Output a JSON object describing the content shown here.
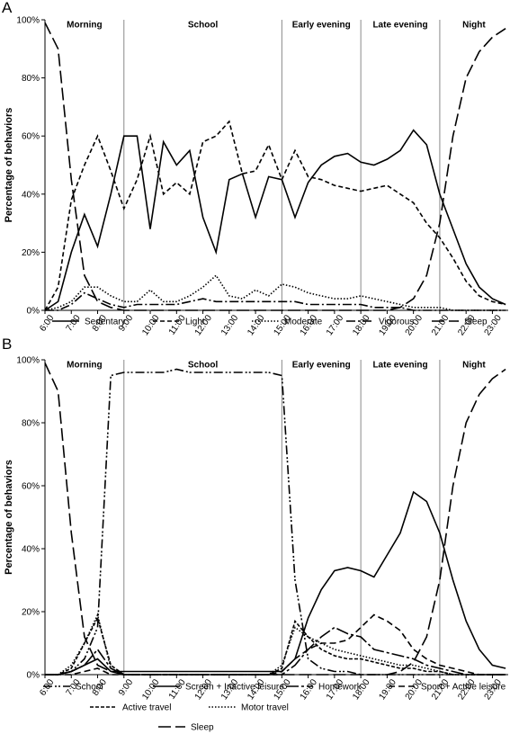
{
  "chart_data": [
    {
      "type": "line",
      "panel": "A",
      "ylabel": "Percentage of behaviors",
      "xlim": [
        6,
        23.6
      ],
      "ylim": [
        0,
        100
      ],
      "xticks": [
        {
          "value": 6,
          "label": "6:00"
        },
        {
          "value": 7,
          "label": "7:00"
        },
        {
          "value": 8,
          "label": "8:00"
        },
        {
          "value": 9,
          "label": "9:00"
        },
        {
          "value": 10,
          "label": "10:00"
        },
        {
          "value": 11,
          "label": "11:00"
        },
        {
          "value": 12,
          "label": "12:00"
        },
        {
          "value": 13,
          "label": "13:00"
        },
        {
          "value": 14,
          "label": "14:00"
        },
        {
          "value": 15,
          "label": "15:00"
        },
        {
          "value": 16,
          "label": "16:00"
        },
        {
          "value": 17,
          "label": "17:00"
        },
        {
          "value": 18,
          "label": "18:00"
        },
        {
          "value": 19,
          "label": "19:00"
        },
        {
          "value": 20,
          "label": "20:00"
        },
        {
          "value": 21,
          "label": "21:00"
        },
        {
          "value": 22,
          "label": "22:00"
        },
        {
          "value": 23,
          "label": "23:00"
        }
      ],
      "yticks": [
        {
          "value": 0,
          "label": "0%"
        },
        {
          "value": 20,
          "label": "20%"
        },
        {
          "value": 40,
          "label": "40%"
        },
        {
          "value": 60,
          "label": "60%"
        },
        {
          "value": 80,
          "label": "80%"
        },
        {
          "value": 100,
          "label": "100%"
        }
      ],
      "sections": [
        "Morning",
        "School",
        "Early evening",
        "Late evening",
        "Night"
      ],
      "dividers": [
        9,
        15,
        18,
        21
      ],
      "x": [
        6,
        6.5,
        7,
        7.5,
        8,
        8.5,
        9,
        9.5,
        10,
        10.5,
        11,
        11.5,
        12,
        12.5,
        13,
        13.5,
        14,
        14.5,
        15,
        15.5,
        16,
        16.5,
        17,
        17.5,
        18,
        18.5,
        19,
        19.5,
        20,
        20.5,
        21,
        21.5,
        22,
        22.5,
        23,
        23.5
      ],
      "series": [
        {
          "name": "Sedentary",
          "color": "#000000",
          "values": [
            0,
            3,
            20,
            33,
            22,
            40,
            60,
            60,
            28,
            58,
            50,
            55,
            32,
            20,
            45,
            47,
            32,
            46,
            45,
            32,
            44,
            50,
            53,
            54,
            51,
            50,
            52,
            55,
            62,
            57,
            40,
            28,
            16,
            8,
            4,
            2
          ]
        },
        {
          "name": "Light",
          "color": "#000000",
          "dash": "5 3",
          "values": [
            0,
            8,
            38,
            50,
            60,
            48,
            35,
            45,
            60,
            40,
            44,
            40,
            58,
            60,
            65,
            47,
            48,
            57,
            45,
            55,
            46,
            45,
            43,
            42,
            41,
            42,
            43,
            40,
            37,
            30,
            25,
            18,
            10,
            5,
            3,
            2
          ]
        },
        {
          "name": "Moderate",
          "color": "#000000",
          "dash": "1.5 2",
          "values": [
            0,
            1,
            3,
            8,
            8,
            5,
            3,
            3,
            7,
            3,
            3,
            5,
            8,
            12,
            5,
            4,
            7,
            5,
            9,
            8,
            6,
            5,
            4,
            4,
            5,
            4,
            3,
            2,
            1,
            1,
            1,
            0,
            0,
            0,
            0,
            0
          ]
        },
        {
          "name": "Vigorous",
          "color": "#000000",
          "dash": "10 3 2 3",
          "values": [
            0,
            0,
            2,
            6,
            4,
            2,
            1,
            2,
            2,
            2,
            2,
            3,
            4,
            3,
            3,
            3,
            3,
            3,
            3,
            3,
            2,
            2,
            2,
            2,
            2,
            1,
            1,
            1,
            0,
            0,
            0,
            0,
            0,
            0,
            0,
            0
          ]
        },
        {
          "name": "Sleep",
          "color": "#000000",
          "dash": "14 5",
          "values": [
            99,
            90,
            45,
            12,
            3,
            1,
            0,
            0,
            0,
            0,
            0,
            0,
            0,
            0,
            0,
            0,
            0,
            0,
            0,
            0,
            0,
            0,
            0,
            0,
            0,
            0,
            0,
            1,
            4,
            12,
            30,
            60,
            80,
            89,
            94,
            97
          ]
        }
      ]
    },
    {
      "type": "line",
      "panel": "B",
      "ylabel": "Percentage of behaviors",
      "xlim": [
        6,
        23.6
      ],
      "ylim": [
        0,
        100
      ],
      "xticks": [
        {
          "value": 6,
          "label": "6:00"
        },
        {
          "value": 7,
          "label": "7:00"
        },
        {
          "value": 8,
          "label": "8:00"
        },
        {
          "value": 9,
          "label": "9:00"
        },
        {
          "value": 10,
          "label": "10:00"
        },
        {
          "value": 11,
          "label": "11:00"
        },
        {
          "value": 12,
          "label": "12:00"
        },
        {
          "value": 13,
          "label": "13:00"
        },
        {
          "value": 14,
          "label": "14:00"
        },
        {
          "value": 15,
          "label": "15:00"
        },
        {
          "value": 16,
          "label": "16:00"
        },
        {
          "value": 17,
          "label": "17:00"
        },
        {
          "value": 18,
          "label": "18:00"
        },
        {
          "value": 19,
          "label": "19:00"
        },
        {
          "value": 20,
          "label": "20:00"
        },
        {
          "value": 21,
          "label": "21:00"
        },
        {
          "value": 22,
          "label": "22:00"
        },
        {
          "value": 23,
          "label": "23:00"
        }
      ],
      "yticks": [
        {
          "value": 0,
          "label": "0%"
        },
        {
          "value": 20,
          "label": "20%"
        },
        {
          "value": 40,
          "label": "40%"
        },
        {
          "value": 60,
          "label": "60%"
        },
        {
          "value": 80,
          "label": "80%"
        },
        {
          "value": 100,
          "label": "100%"
        }
      ],
      "sections": [
        "Morning",
        "School",
        "Early evening",
        "Late evening",
        "Night"
      ],
      "dividers": [
        9,
        15,
        18,
        21
      ],
      "x": [
        6,
        6.5,
        7,
        7.5,
        8,
        8.5,
        9,
        9.5,
        10,
        10.5,
        11,
        11.5,
        12,
        12.5,
        13,
        13.5,
        14,
        14.5,
        15,
        15.5,
        16,
        16.5,
        17,
        17.5,
        18,
        18.5,
        19,
        19.5,
        20,
        20.5,
        21,
        21.5,
        22,
        22.5,
        23,
        23.5
      ],
      "series": [
        {
          "name": "School",
          "color": "#000000",
          "dash": "10 3 2 2 2 3",
          "values": [
            0,
            0,
            1,
            5,
            15,
            95,
            96,
            96,
            96,
            96,
            97,
            96,
            96,
            96,
            96,
            96,
            96,
            96,
            95,
            30,
            5,
            2,
            1,
            1,
            0,
            0,
            0,
            0,
            0,
            0,
            0,
            0,
            0,
            0,
            0,
            0
          ]
        },
        {
          "name": "Screen + Inactive leisure",
          "color": "#000000",
          "values": [
            0,
            0,
            1,
            3,
            5,
            1,
            1,
            1,
            1,
            1,
            1,
            1,
            1,
            1,
            1,
            1,
            1,
            1,
            1,
            5,
            18,
            27,
            33,
            34,
            33,
            31,
            38,
            45,
            58,
            55,
            45,
            30,
            17,
            8,
            3,
            2
          ]
        },
        {
          "name": "Homework",
          "color": "#000000",
          "dash": "14 3 3 3",
          "values": [
            0,
            0,
            1,
            3,
            8,
            2,
            0,
            0,
            0,
            0,
            0,
            0,
            0,
            0,
            0,
            0,
            0,
            0,
            0,
            3,
            8,
            12,
            15,
            13,
            12,
            8,
            7,
            6,
            5,
            3,
            2,
            1,
            0,
            0,
            0,
            0
          ]
        },
        {
          "name": "Sport + Active leisure",
          "color": "#000000",
          "dash": "7 4",
          "values": [
            0,
            0,
            0,
            1,
            2,
            0,
            0,
            0,
            0,
            0,
            0,
            0,
            0,
            0,
            0,
            0,
            0,
            0,
            1,
            5,
            8,
            10,
            10,
            11,
            15,
            19,
            17,
            14,
            8,
            5,
            3,
            2,
            1,
            0,
            0,
            0
          ]
        },
        {
          "name": "Active travel",
          "color": "#000000",
          "dash": "4 2",
          "values": [
            0,
            0,
            2,
            10,
            18,
            3,
            0,
            0,
            0,
            0,
            0,
            0,
            0,
            0,
            0,
            0,
            0,
            0,
            2,
            17,
            12,
            8,
            6,
            5,
            5,
            4,
            3,
            2,
            2,
            1,
            1,
            0,
            0,
            0,
            0,
            0
          ]
        },
        {
          "name": "Motor travel",
          "color": "#000000",
          "dash": "1.5 2",
          "values": [
            0,
            0,
            3,
            10,
            19,
            2,
            0,
            0,
            0,
            0,
            0,
            0,
            0,
            0,
            0,
            0,
            0,
            0,
            3,
            15,
            12,
            10,
            8,
            7,
            6,
            5,
            4,
            3,
            3,
            2,
            1,
            0,
            0,
            0,
            0,
            0
          ]
        },
        {
          "name": "Sleep",
          "color": "#000000",
          "dash": "14 5",
          "values": [
            99,
            90,
            45,
            12,
            3,
            1,
            0,
            0,
            0,
            0,
            0,
            0,
            0,
            0,
            0,
            0,
            0,
            0,
            0,
            0,
            0,
            0,
            0,
            0,
            0,
            0,
            0,
            1,
            4,
            12,
            30,
            60,
            80,
            89,
            94,
            97
          ]
        }
      ]
    }
  ]
}
